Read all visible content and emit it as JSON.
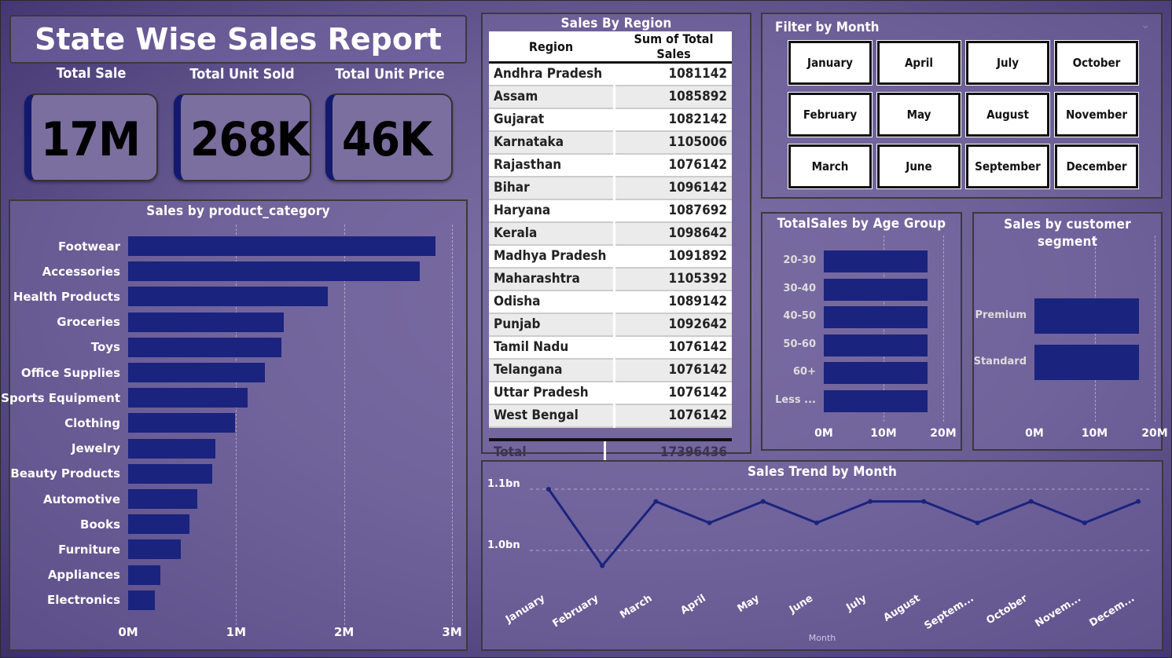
{
  "title": "State Wise Sales Report",
  "kpis": [
    {
      "label": "Total Sale",
      "value": "17M"
    },
    {
      "label": "Total Unit Sold",
      "value": "268K"
    },
    {
      "label": "Total Unit Price",
      "value": "46K"
    }
  ],
  "region_table": {
    "title": "Sales By Region",
    "col_region": "Region",
    "col_sales": "Sum of Total Sales",
    "rows": [
      [
        "Andhra Pradesh",
        "1081142"
      ],
      [
        "Assam",
        "1085892"
      ],
      [
        "Gujarat",
        "1082142"
      ],
      [
        "Karnataka",
        "1105006"
      ],
      [
        "Rajasthan",
        "1076142"
      ],
      [
        "Bihar",
        "1096142"
      ],
      [
        "Haryana",
        "1087692"
      ],
      [
        "Kerala",
        "1098642"
      ],
      [
        "Madhya Pradesh",
        "1091892"
      ],
      [
        "Maharashtra",
        "1105392"
      ],
      [
        "Odisha",
        "1089142"
      ],
      [
        "Punjab",
        "1092642"
      ],
      [
        "Tamil Nadu",
        "1076142"
      ],
      [
        "Telangana",
        "1076142"
      ],
      [
        "Uttar Pradesh",
        "1076142"
      ],
      [
        "West Bengal",
        "1076142"
      ]
    ],
    "total_label": "Total",
    "total_value": "17396436"
  },
  "month_filter": {
    "title": "Filter by Month",
    "months": [
      "January",
      "April",
      "July",
      "October",
      "February",
      "May",
      "August",
      "November",
      "March",
      "June",
      "September",
      "December"
    ]
  },
  "colors": {
    "bar": "#1a237e",
    "accent": "#131a6e"
  },
  "chart_data": [
    {
      "type": "bar",
      "orientation": "horizontal",
      "title": "Sales by product_category",
      "categories": [
        "Footwear",
        "Accessories",
        "Health Products",
        "Groceries",
        "Toys",
        "Office Supplies",
        "Sports Equipment",
        "Clothing",
        "Jewelry",
        "Beauty Products",
        "Automotive",
        "Books",
        "Furniture",
        "Appliances",
        "Electronics"
      ],
      "values": [
        2850000,
        2700000,
        1850000,
        1440000,
        1420000,
        1270000,
        1110000,
        990000,
        810000,
        780000,
        640000,
        570000,
        490000,
        300000,
        250000
      ],
      "xticks": [
        "0M",
        "1M",
        "2M",
        "3M"
      ],
      "xlim": [
        0,
        3000000
      ],
      "grid": true
    },
    {
      "type": "bar",
      "orientation": "horizontal",
      "title": "TotalSales by Age Group",
      "categories": [
        "20-30",
        "30-40",
        "40-50",
        "50-60",
        "60+",
        "Less ..."
      ],
      "values": [
        17400000,
        17400000,
        17400000,
        17400000,
        17400000,
        17400000
      ],
      "xticks": [
        "0M",
        "10M",
        "20M"
      ],
      "xlim": [
        0,
        20000000
      ],
      "grid": true
    },
    {
      "type": "bar",
      "orientation": "horizontal",
      "title": "Sales by customer segment",
      "categories": [
        "Premium",
        "Standard"
      ],
      "values": [
        17400000,
        17400000
      ],
      "xticks": [
        "0M",
        "10M",
        "20M"
      ],
      "xlim": [
        0,
        20000000
      ],
      "grid": true
    },
    {
      "type": "line",
      "title": "Sales Trend by Month",
      "xlabel": "Month",
      "x": [
        "January",
        "February",
        "March",
        "April",
        "May",
        "June",
        "July",
        "August",
        "Septem...",
        "October",
        "Novem...",
        "Decem..."
      ],
      "values": [
        1100000000,
        975000000,
        1080000000,
        1045000000,
        1080000000,
        1045000000,
        1080000000,
        1080000000,
        1045000000,
        1080000000,
        1045000000,
        1080000000
      ],
      "yticks": [
        "1.0bn",
        "1.1bn"
      ],
      "ylim": [
        1000000000,
        1100000000
      ],
      "grid": true
    }
  ]
}
